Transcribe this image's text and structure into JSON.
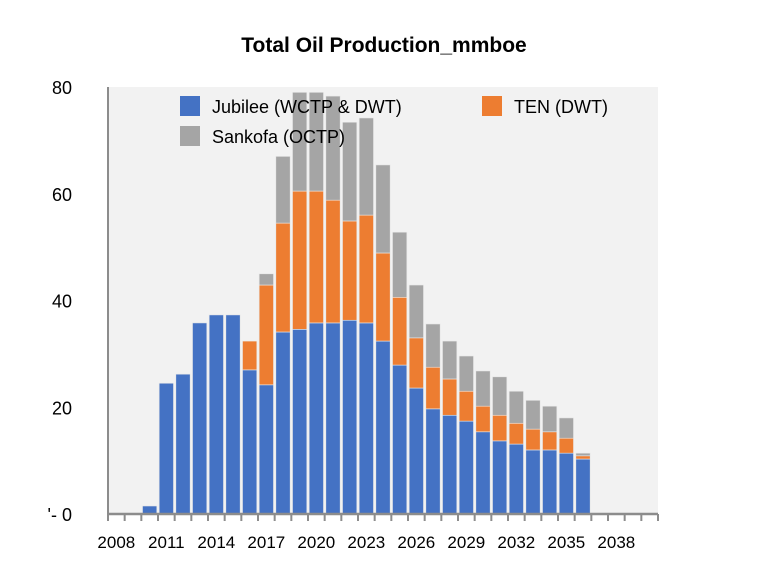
{
  "chart_data": {
    "type": "bar",
    "stacked": true,
    "title": "Total Oil Production_mmboe",
    "xlabel": "",
    "ylabel": "",
    "ylim": [
      0,
      80
    ],
    "yticks": [
      0,
      20,
      40,
      60,
      80
    ],
    "ytick_labels": [
      "'- 0",
      "20",
      "40",
      "60",
      "80"
    ],
    "categories": [
      2008,
      2009,
      2010,
      2011,
      2012,
      2013,
      2014,
      2015,
      2016,
      2017,
      2018,
      2019,
      2020,
      2021,
      2022,
      2023,
      2024,
      2025,
      2026,
      2027,
      2028,
      2029,
      2030,
      2031,
      2032,
      2033,
      2034,
      2035,
      2036,
      2037,
      2038,
      2039,
      2040
    ],
    "xtick_labels": [
      "2008",
      "2011",
      "2014",
      "2017",
      "2020",
      "2023",
      "2026",
      "2029",
      "2032",
      "2035",
      "2038"
    ],
    "grid": false,
    "legend_position": "top",
    "series": [
      {
        "name": "Jubilee (WCTP & DWT)",
        "color": "#4472c4",
        "values": [
          0,
          0,
          1.5,
          24.5,
          26.2,
          35.8,
          37.3,
          37.3,
          27.0,
          24.2,
          34.1,
          34.6,
          35.8,
          35.8,
          36.3,
          35.8,
          32.4,
          27.9,
          23.6,
          19.7,
          18.5,
          17.4,
          15.4,
          13.7,
          13.1,
          12.0,
          12.0,
          11.4,
          10.3,
          0,
          0,
          0,
          0
        ]
      },
      {
        "name": "TEN (DWT)",
        "color": "#ed7d31",
        "values": [
          0,
          0,
          0,
          0,
          0,
          0,
          0,
          0,
          5.4,
          18.7,
          20.4,
          25.9,
          24.7,
          23.0,
          18.6,
          20.2,
          16.5,
          12.7,
          9.4,
          7.8,
          6.8,
          5.6,
          4.8,
          4.8,
          3.9,
          3.9,
          3.4,
          2.8,
          0.6,
          0,
          0,
          0,
          0
        ]
      },
      {
        "name": "Sankofa (OCTP)",
        "color": "#a5a5a5",
        "values": [
          0,
          0,
          0,
          0,
          0,
          0,
          0,
          0,
          0,
          2.1,
          12.5,
          18.5,
          18.5,
          19.5,
          18.5,
          18.2,
          16.5,
          12.2,
          9.9,
          8.1,
          7.1,
          6.6,
          6.6,
          7.2,
          6.0,
          5.4,
          4.8,
          3.8,
          0.5,
          0,
          0,
          0,
          0
        ]
      }
    ],
    "plot_background": "#f2f2f2"
  }
}
